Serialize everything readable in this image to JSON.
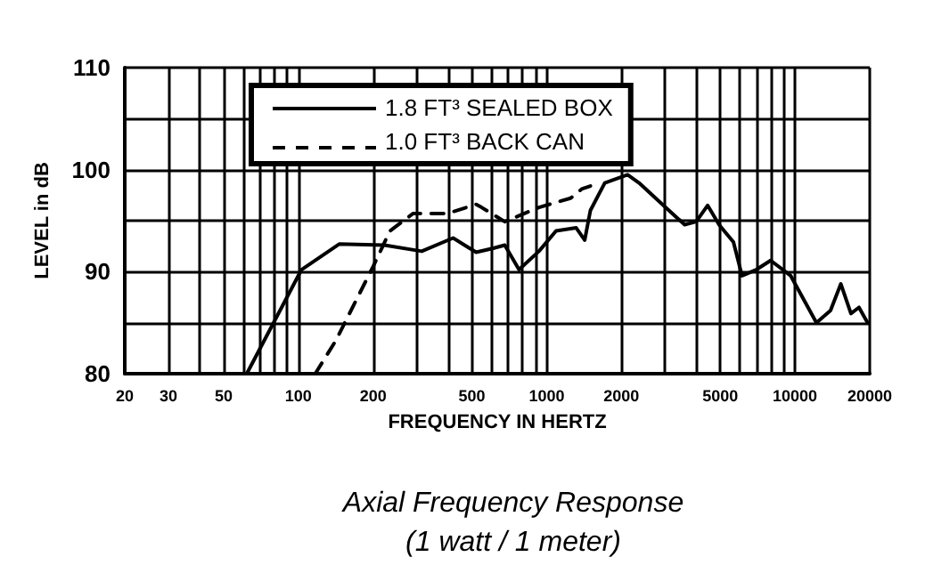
{
  "chart_data": {
    "type": "line",
    "title": "Axial Frequency Response",
    "subtitle": "(1 watt / 1 meter)",
    "xlabel": "FREQUENCY IN HERTZ",
    "ylabel": "LEVEL in dB",
    "log": "x",
    "grid": true,
    "legend": "top left",
    "marker": "none",
    "xlim": [
      20,
      20000
    ],
    "ylim": [
      80,
      110
    ],
    "xticks": [
      20,
      30,
      {
        "value": 40,
        "label": null
      },
      50,
      {
        "value": 60,
        "label": null
      },
      {
        "value": 70,
        "label": null
      },
      {
        "value": 80,
        "label": null
      },
      {
        "value": 90,
        "label": null
      },
      100,
      200,
      {
        "value": 300,
        "label": null
      },
      {
        "value": 400,
        "label": null
      },
      500,
      {
        "value": 600,
        "label": null
      },
      {
        "value": 700,
        "label": null
      },
      {
        "value": 800,
        "label": null
      },
      {
        "value": 900,
        "label": null
      },
      1000,
      2000,
      {
        "value": 3000,
        "label": null
      },
      {
        "value": 4000,
        "label": null
      },
      5000,
      {
        "value": 6000,
        "label": null
      },
      {
        "value": 7000,
        "label": null
      },
      {
        "value": 8000,
        "label": null
      },
      {
        "value": 9000,
        "label": null
      },
      10000,
      20000
    ],
    "yticks": [
      80,
      {
        "value": 85,
        "label": null
      },
      90,
      {
        "value": 95,
        "label": null
      },
      100,
      {
        "value": 105,
        "label": null
      },
      110
    ],
    "series": [
      {
        "name": "1.8 FT³ SEALED BOX",
        "color": "#000000",
        "line_style": "solid",
        "x": [
          62,
          103,
          146,
          222,
          314,
          420,
          467,
          520,
          610,
          678,
          774,
          931,
          1091,
          1315,
          1423,
          1500,
          1714,
          2118,
          2355,
          2834,
          3594,
          4000,
          4448,
          4945,
          5650,
          6120,
          6990,
          7980,
          9610,
          12200,
          13900,
          15300,
          16800,
          18100,
          19600
        ],
        "values": [
          80,
          90.2,
          92.7,
          92.6,
          92,
          93.3,
          92.6,
          91.9,
          92.3,
          92.6,
          90.2,
          92,
          94,
          94.3,
          93.1,
          96,
          98.7,
          99.5,
          98.7,
          96.9,
          94.6,
          94.9,
          96.5,
          94.6,
          92.9,
          89.6,
          90.2,
          91.1,
          89.6,
          85,
          86.2,
          88.8,
          85.9,
          86.5,
          85
        ]
      },
      {
        "name": "1.0 FT³ BACK CAN",
        "color": "#000000",
        "line_style": "dashed",
        "x": [
          117,
          142,
          200,
          234,
          290,
          398,
          520,
          547,
          678,
          931,
          1248,
          1384,
          1500
        ],
        "values": [
          80,
          83.3,
          90.5,
          94,
          95.7,
          95.7,
          96.6,
          96.3,
          94.9,
          96.3,
          97.2,
          98.1,
          98.4
        ]
      }
    ]
  }
}
